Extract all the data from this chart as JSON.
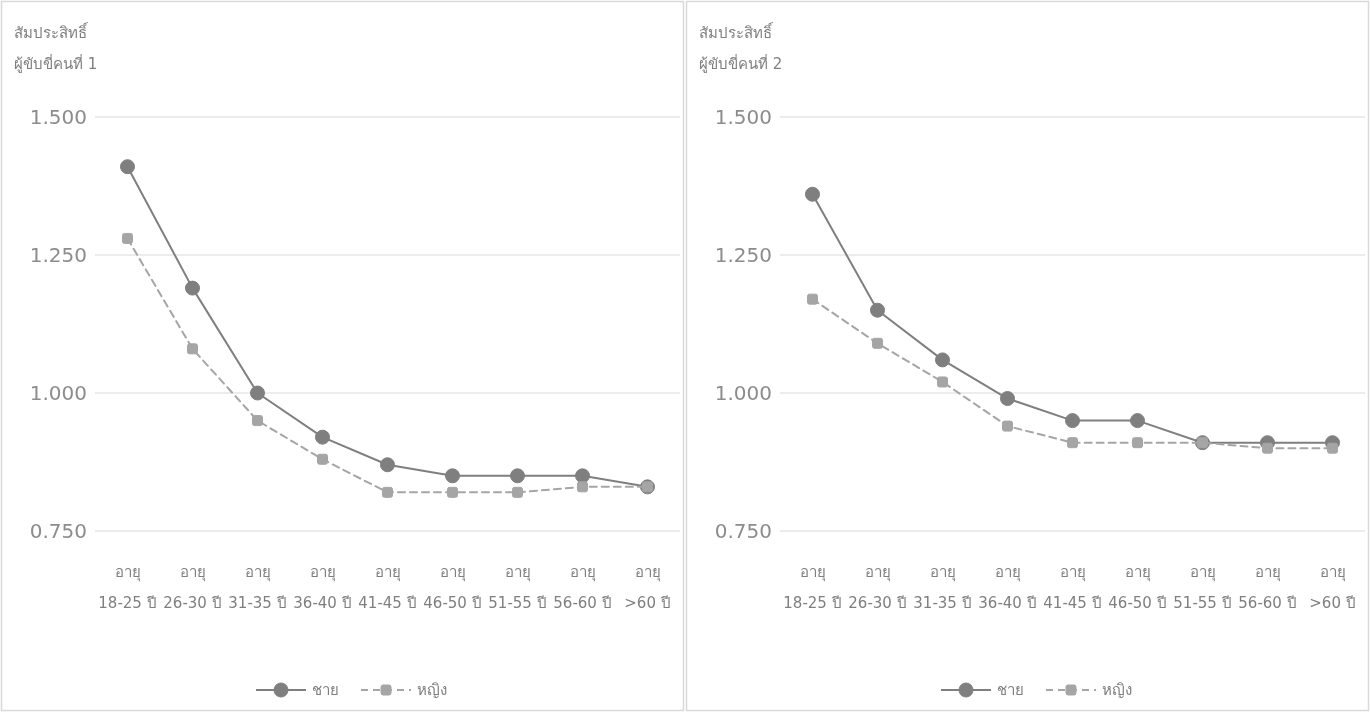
{
  "chart_data": [
    {
      "type": "line",
      "ylabel": "สัมประสิทธิ์ ผู้ขับขี่คนที่ 1",
      "categories": [
        "อายุ 18-25 ปี",
        "อายุ 26-30 ปี",
        "อายุ 31-35 ปี",
        "อายุ 36-40 ปี",
        "อายุ 41-45 ปี",
        "อายุ 46-50 ปี",
        "อายุ 51-55 ปี",
        "อายุ 56-60 ปี",
        "อายุ >60 ปี"
      ],
      "series": [
        {
          "name": "ชาย",
          "color": "#7f7f7f",
          "marker": "circle",
          "line_style": "solid",
          "values": [
            1.41,
            1.19,
            1.0,
            0.92,
            0.87,
            0.85,
            0.85,
            0.85,
            0.83
          ]
        },
        {
          "name": "หญิง",
          "color": "#a5a5a5",
          "marker": "square",
          "line_style": "dashed",
          "values": [
            1.28,
            1.08,
            0.95,
            0.88,
            0.82,
            0.82,
            0.82,
            0.83,
            0.83
          ]
        }
      ],
      "ylim": [
        0.75,
        1.5
      ],
      "yticks": [
        {
          "value": 0.75,
          "label": "0.750"
        },
        {
          "value": 1.0,
          "label": "1.000"
        },
        {
          "value": 1.25,
          "label": "1.250"
        },
        {
          "value": 1.5,
          "label": "1.500"
        }
      ],
      "grid": "y",
      "legend": "bottom"
    },
    {
      "type": "line",
      "ylabel": "สัมประสิทธิ์ ผู้ขับขี่คนที่ 2",
      "categories": [
        "อายุ 18-25 ปี",
        "อายุ 26-30 ปี",
        "อายุ 31-35 ปี",
        "อายุ 36-40 ปี",
        "อายุ 41-45 ปี",
        "อายุ 46-50 ปี",
        "อายุ 51-55 ปี",
        "อายุ 56-60 ปี",
        "อายุ >60 ปี"
      ],
      "series": [
        {
          "name": "ชาย",
          "color": "#7f7f7f",
          "marker": "circle",
          "line_style": "solid",
          "values": [
            1.36,
            1.15,
            1.06,
            0.99,
            0.95,
            0.95,
            0.91,
            0.91,
            0.91
          ]
        },
        {
          "name": "หญิง",
          "color": "#a5a5a5",
          "marker": "square",
          "line_style": "dashed",
          "values": [
            1.17,
            1.09,
            1.02,
            0.94,
            0.91,
            0.91,
            0.91,
            0.9,
            0.9
          ]
        }
      ],
      "ylim": [
        0.75,
        1.5
      ],
      "yticks": [
        {
          "value": 0.75,
          "label": "0.750"
        },
        {
          "value": 1.0,
          "label": "1.000"
        },
        {
          "value": 1.25,
          "label": "1.250"
        },
        {
          "value": 1.5,
          "label": "1.500"
        }
      ],
      "grid": "y",
      "legend": "bottom"
    }
  ]
}
